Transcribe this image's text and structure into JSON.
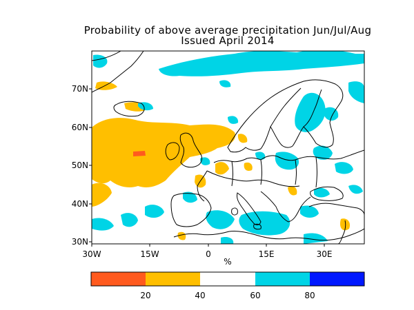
{
  "title": "Probability of above average precipitation Jun/Jul/Aug",
  "subtitle": "Issued April 2014",
  "map": {
    "region": "Europe and North Atlantic",
    "lon_range": [
      -30,
      40
    ],
    "lat_range": [
      29.5,
      80
    ],
    "x_ticks": [
      "30W",
      "15W",
      "0",
      "15E",
      "30E"
    ],
    "y_ticks": [
      "30N",
      "40N",
      "50N",
      "60N",
      "70N"
    ],
    "colors": {
      "very_low": "#ff5a1e",
      "low": "#ffbf00",
      "neutral": "#ffffff",
      "high": "#00d4e6",
      "very_high": "#0018ff",
      "coast": "#000000"
    }
  },
  "colorbar": {
    "unit_label": "%",
    "ticks": [
      "20",
      "40",
      "60",
      "80"
    ],
    "bins": [
      {
        "range": "0-20",
        "color": "#ff5a1e"
      },
      {
        "range": "20-40",
        "color": "#ffbf00"
      },
      {
        "range": "40-60",
        "color": "#ffffff"
      },
      {
        "range": "60-80",
        "color": "#00d4e6"
      },
      {
        "range": "80-100",
        "color": "#0018ff"
      }
    ]
  }
}
